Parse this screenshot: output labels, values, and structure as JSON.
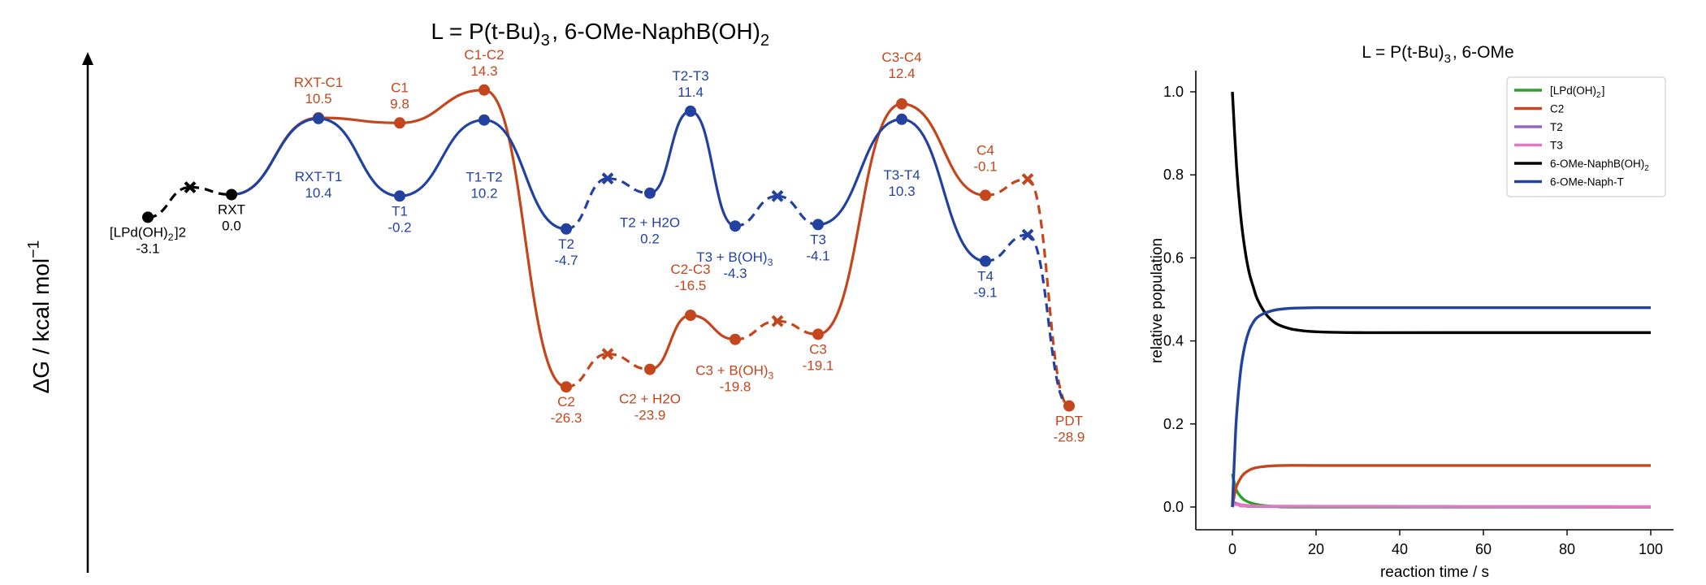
{
  "chart_data": [
    {
      "type": "line",
      "subtype": "reaction-energy-profile",
      "title": "L = P(t-Bu)3, 6-OMe-NaphB(OH)2",
      "ylabel": "ΔG / kcal mol-1",
      "colors": {
        "black": "#000000",
        "orange": "#c4461c",
        "blue": "#2342a0"
      },
      "series": [
        {
          "name": "",
          "color": "#000000",
          "points": [
            {
              "label": "[LPd(OH)2]2",
              "value": "-3.1",
              "y": -3.1,
              "marker": "circle"
            },
            {
              "label": "",
              "value": "",
              "y": 1.0,
              "marker": "x"
            },
            {
              "label": "RXT",
              "value": "0.0",
              "y": 0.0,
              "marker": "circle"
            }
          ]
        },
        {
          "name": "",
          "color": "#c4461c",
          "points": [
            {
              "label": "RXT-C1",
              "value": "10.5",
              "y": 10.5,
              "marker": "circle"
            },
            {
              "label": "C1",
              "value": "9.8",
              "y": 9.8,
              "marker": "circle"
            },
            {
              "label": "C1-C2",
              "value": "14.3",
              "y": 14.3,
              "marker": "circle"
            },
            {
              "label": "C2",
              "value": "-26.3",
              "y": -26.3,
              "marker": "circle"
            },
            {
              "label": "",
              "value": "",
              "y": -21.8,
              "marker": "x"
            },
            {
              "label": "C2 + H2O",
              "value": "-23.9",
              "y": -23.9,
              "marker": "circle"
            },
            {
              "label": "C2-C3",
              "value": "-16.5",
              "y": -16.5,
              "marker": "circle"
            },
            {
              "label": "C3 + B(OH)3",
              "value": "-19.8",
              "y": -19.8,
              "marker": "circle"
            },
            {
              "label": "",
              "value": "",
              "y": -17.3,
              "marker": "x"
            },
            {
              "label": "C3",
              "value": "-19.1",
              "y": -19.1,
              "marker": "circle"
            },
            {
              "label": "C3-C4",
              "value": "12.4",
              "y": 12.4,
              "marker": "circle"
            },
            {
              "label": "C4",
              "value": "-0.1",
              "y": -0.1,
              "marker": "circle"
            },
            {
              "label": "",
              "value": "",
              "y": 2.1,
              "marker": "x"
            },
            {
              "label": "PDT",
              "value": "-28.9",
              "y": -28.9,
              "marker": "circle"
            }
          ]
        },
        {
          "name": "",
          "color": "#2342a0",
          "points": [
            {
              "label": "RXT-T1",
              "value": "10.4",
              "y": 10.4,
              "marker": "circle"
            },
            {
              "label": "T1",
              "value": "-0.2",
              "y": -0.2,
              "marker": "circle"
            },
            {
              "label": "T1-T2",
              "value": "10.2",
              "y": 10.2,
              "marker": "circle"
            },
            {
              "label": "T2",
              "value": "-4.7",
              "y": -4.7,
              "marker": "circle"
            },
            {
              "label": "",
              "value": "",
              "y": 2.2,
              "marker": "x"
            },
            {
              "label": "T2 + H2O",
              "value": "0.2",
              "y": 0.2,
              "marker": "circle"
            },
            {
              "label": "T2-T3",
              "value": "11.4",
              "y": 11.4,
              "marker": "circle"
            },
            {
              "label": "T3 + B(OH)3",
              "value": "-4.3",
              "y": -4.3,
              "marker": "circle"
            },
            {
              "label": "",
              "value": "",
              "y": -0.2,
              "marker": "x"
            },
            {
              "label": "T3",
              "value": "-4.1",
              "y": -4.1,
              "marker": "circle"
            },
            {
              "label": "T3-T4",
              "value": "10.3",
              "y": 10.3,
              "marker": "circle"
            },
            {
              "label": "T4",
              "value": "-9.1",
              "y": -9.1,
              "marker": "circle"
            },
            {
              "label": "",
              "value": "",
              "y": -5.5,
              "marker": "x"
            }
          ]
        }
      ]
    },
    {
      "type": "line",
      "title": "L = P(t-Bu)3, 6-OMe",
      "xlabel": "reaction time / s",
      "ylabel": "relative population",
      "xlim": [
        -4,
        106
      ],
      "ylim": [
        -0.04,
        1.05
      ],
      "xticks": [
        "0",
        "20",
        "40",
        "60",
        "80",
        "100"
      ],
      "yticks": [
        "0.0",
        "0.2",
        "0.4",
        "0.6",
        "0.8",
        "1.0"
      ],
      "legend_position": "top-right",
      "series": [
        {
          "name": "[LPd(OH)2]",
          "color": "#2ca02c",
          "x": [
            0,
            0.3,
            1,
            2,
            3,
            5,
            8,
            12,
            20,
            100
          ],
          "y": [
            0.08,
            0.065,
            0.04,
            0.025,
            0.016,
            0.008,
            0.003,
            0.001,
            0.0,
            0.0
          ]
        },
        {
          "name": "C2",
          "color": "#c4461c",
          "x": [
            0,
            0.5,
            1,
            2,
            3,
            5,
            8,
            12,
            20,
            40,
            100
          ],
          "y": [
            0.0,
            0.03,
            0.05,
            0.07,
            0.082,
            0.093,
            0.098,
            0.1,
            0.1,
            0.1,
            0.1
          ]
        },
        {
          "name": "T2",
          "color": "#9467bd",
          "x": [
            0,
            0.5,
            1,
            3,
            6,
            12,
            100
          ],
          "y": [
            0.0,
            0.01,
            0.008,
            0.004,
            0.002,
            0.001,
            0.0
          ]
        },
        {
          "name": "T3",
          "color": "#e377c2",
          "x": [
            0,
            0.5,
            2,
            5,
            10,
            100
          ],
          "y": [
            0.0,
            0.006,
            0.005,
            0.003,
            0.002,
            0.001
          ]
        },
        {
          "name": "6-OMe-NaphB(OH)2",
          "color": "#000000",
          "x": [
            0,
            1,
            2,
            3,
            4,
            5,
            6,
            8,
            10,
            12,
            15,
            20,
            30,
            50,
            100
          ],
          "y": [
            1.0,
            0.82,
            0.7,
            0.62,
            0.565,
            0.53,
            0.5,
            0.465,
            0.445,
            0.435,
            0.427,
            0.422,
            0.42,
            0.42,
            0.42
          ]
        },
        {
          "name": "6-OMe-Naph-T",
          "color": "#2342a0",
          "x": [
            0,
            0.5,
            1,
            2,
            3,
            4,
            5,
            6,
            8,
            10,
            12,
            15,
            20,
            30,
            50,
            100
          ],
          "y": [
            0.0,
            0.12,
            0.22,
            0.33,
            0.39,
            0.425,
            0.445,
            0.457,
            0.468,
            0.474,
            0.477,
            0.479,
            0.48,
            0.48,
            0.48,
            0.48
          ]
        }
      ]
    }
  ]
}
